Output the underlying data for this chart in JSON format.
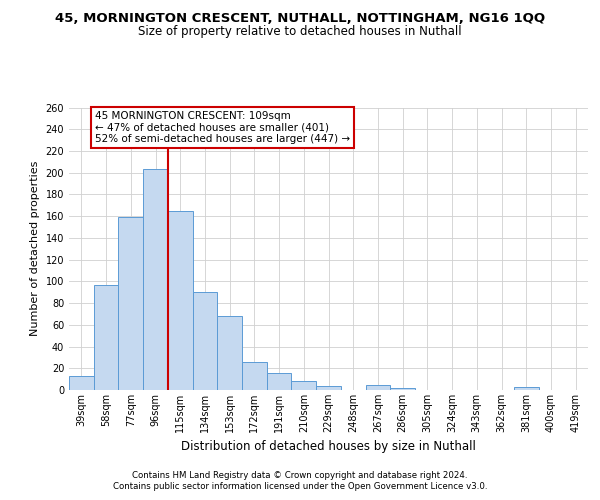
{
  "title1": "45, MORNINGTON CRESCENT, NUTHALL, NOTTINGHAM, NG16 1QQ",
  "title2": "Size of property relative to detached houses in Nuthall",
  "xlabel": "Distribution of detached houses by size in Nuthall",
  "ylabel": "Number of detached properties",
  "categories": [
    "39sqm",
    "58sqm",
    "77sqm",
    "96sqm",
    "115sqm",
    "134sqm",
    "153sqm",
    "172sqm",
    "191sqm",
    "210sqm",
    "229sqm",
    "248sqm",
    "267sqm",
    "286sqm",
    "305sqm",
    "324sqm",
    "343sqm",
    "362sqm",
    "381sqm",
    "400sqm",
    "419sqm"
  ],
  "values": [
    13,
    97,
    159,
    203,
    165,
    90,
    68,
    26,
    16,
    8,
    4,
    0,
    5,
    2,
    0,
    0,
    0,
    0,
    3,
    0,
    0
  ],
  "bar_color": "#c5d9f0",
  "bar_edge_color": "#5b9bd5",
  "vline_color": "#cc0000",
  "vline_x_index": 4,
  "ylim": [
    0,
    260
  ],
  "yticks": [
    0,
    20,
    40,
    60,
    80,
    100,
    120,
    140,
    160,
    180,
    200,
    220,
    240,
    260
  ],
  "annotation_text": "45 MORNINGTON CRESCENT: 109sqm\n← 47% of detached houses are smaller (401)\n52% of semi-detached houses are larger (447) →",
  "annotation_box_color": "#ffffff",
  "annotation_box_edge": "#cc0000",
  "footnote1": "Contains HM Land Registry data © Crown copyright and database right 2024.",
  "footnote2": "Contains public sector information licensed under the Open Government Licence v3.0.",
  "background_color": "#ffffff",
  "grid_color": "#d0d0d0",
  "title1_fontsize": 9.5,
  "title2_fontsize": 8.5,
  "ylabel_fontsize": 8,
  "xlabel_fontsize": 8.5,
  "tick_fontsize": 7,
  "ann_fontsize": 7.5
}
